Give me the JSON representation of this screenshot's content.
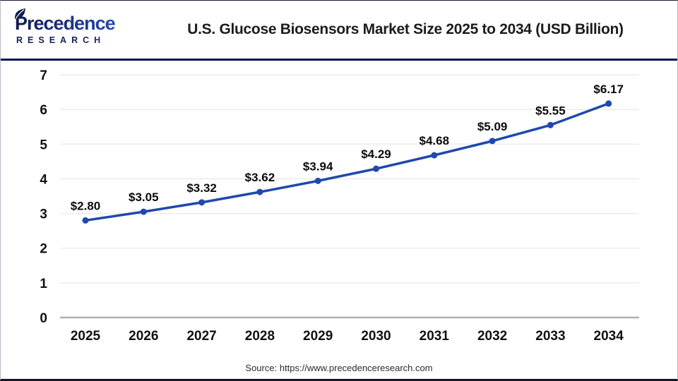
{
  "header": {
    "logo": {
      "name": "Precedence",
      "subname": "RESEARCH"
    },
    "title": "U.S. Glucose Biosensors Market Size 2025 to 2034 (USD Billion)"
  },
  "chart_data": {
    "type": "line",
    "title": "U.S. Glucose Biosensors Market Size 2025 to 2034 (USD Billion)",
    "categories": [
      "2025",
      "2026",
      "2027",
      "2028",
      "2029",
      "2030",
      "2031",
      "2032",
      "2033",
      "2034"
    ],
    "values": [
      2.8,
      3.05,
      3.32,
      3.62,
      3.94,
      4.29,
      4.68,
      5.09,
      5.55,
      6.17
    ],
    "point_labels": [
      "$2.80",
      "$3.05",
      "$3.32",
      "$3.62",
      "$3.94",
      "$4.29",
      "$4.68",
      "$5.09",
      "$5.55",
      "$6.17"
    ],
    "xlabel": "",
    "ylabel": "",
    "ylim": [
      0,
      7
    ],
    "yticks": [
      0,
      1,
      2,
      3,
      4,
      5,
      6,
      7
    ],
    "grid": "horizontal",
    "legend": "none",
    "unit": "USD Billion"
  },
  "colors": {
    "line": "#1e49ad",
    "marker": "#1e49ad",
    "gridline": "#ececec",
    "zero_line": "#b0b0b0",
    "divider_navy": "#0c1550",
    "logo_navy": "#101a4e",
    "logo_blue": "#2e5cd6",
    "title_text": "#1c1c1c"
  },
  "footer": {
    "source": "Source: https://www.precedenceresearch.com"
  }
}
